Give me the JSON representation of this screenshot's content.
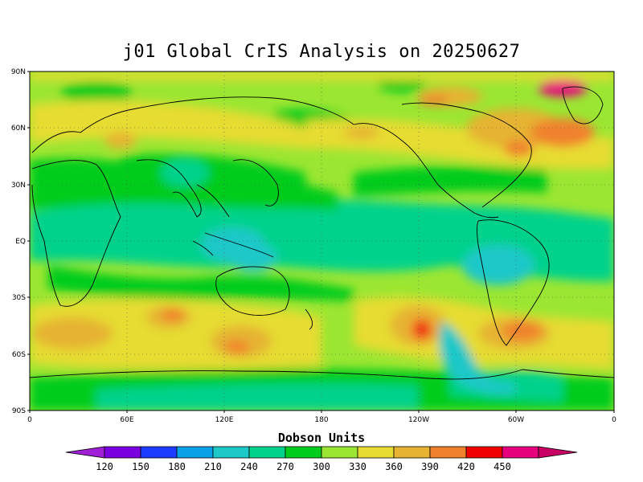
{
  "title": "j01 Global CrIS Analysis on 20250627",
  "axes": {
    "lat_ticks": [
      "90N",
      "60N",
      "30N",
      "EQ",
      "30S",
      "60S",
      "90S"
    ],
    "lon_ticks": [
      "0",
      "60E",
      "120E",
      "180",
      "120W",
      "60W",
      "0"
    ]
  },
  "colorbar": {
    "title": "Dobson Units",
    "labels": [
      "120",
      "150",
      "180",
      "210",
      "240",
      "270",
      "300",
      "330",
      "360",
      "390",
      "420",
      "450"
    ],
    "colors": [
      "#a020d8",
      "#7b00e0",
      "#1e3cff",
      "#0aa0e6",
      "#1ec8c8",
      "#00d28c",
      "#00cc1e",
      "#9be632",
      "#e6dc32",
      "#e6b432",
      "#f0822d",
      "#f00000",
      "#e6007d",
      "#c80064"
    ]
  },
  "chart_data": {
    "type": "heatmap",
    "title": "j01 Global CrIS Analysis on 20250627",
    "xlabel": "",
    "ylabel": "",
    "x_range": [
      "0",
      "360"
    ],
    "y_range": [
      "90S",
      "90N"
    ],
    "colorbar_units": "Dobson Units",
    "levels": [
      120,
      150,
      180,
      210,
      240,
      270,
      300,
      330,
      360,
      390,
      420,
      450
    ],
    "grid": true
  }
}
